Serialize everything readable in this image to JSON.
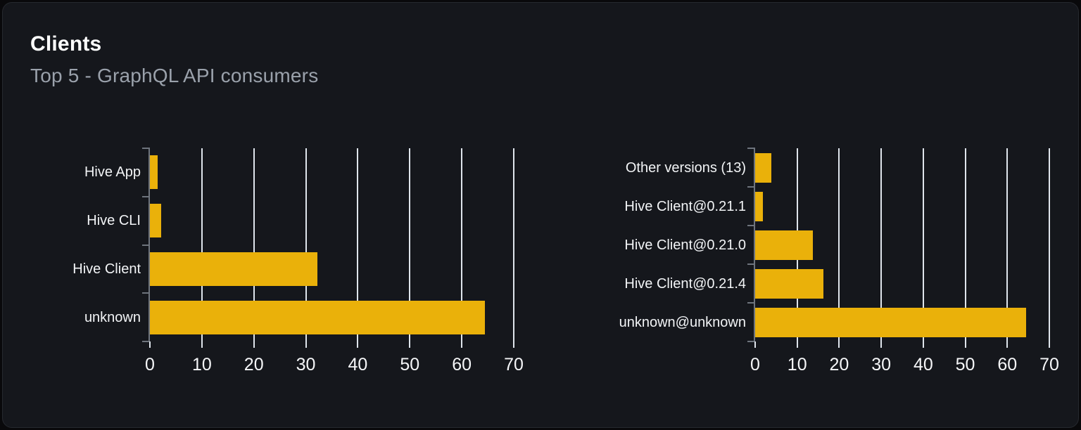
{
  "card": {
    "title": "Clients",
    "subtitle": "Top 5 - GraphQL API consumers"
  },
  "colors": {
    "page_bg": "#09090b",
    "card_bg": "#15171c",
    "card_border": "#26292f",
    "title": "#ffffff",
    "subtitle": "#9aa1ab",
    "bar": "#eab10a",
    "gridline": "#dfe5ec",
    "axis_spine": "#6e747d",
    "category_tick": "#6e747d",
    "x_tick": "#dfe5ec",
    "category_label": "#f2f4f6",
    "x_tick_label": "#f5f6f8"
  },
  "chart_data": [
    {
      "type": "bar",
      "orientation": "horizontal",
      "name": "top-clients",
      "categories": [
        "Hive App",
        "Hive CLI",
        "Hive Client",
        "unknown"
      ],
      "values": [
        1.5,
        2.2,
        32.2,
        64.5
      ],
      "xlim": [
        0,
        70
      ],
      "xticks": [
        0,
        10,
        20,
        30,
        40,
        50,
        60,
        70
      ],
      "grid": true,
      "legend": "none",
      "value_unit": "percent"
    },
    {
      "type": "bar",
      "orientation": "horizontal",
      "name": "top-client-versions",
      "categories": [
        "Other versions (13)",
        "Hive Client@0.21.1",
        "Hive Client@0.21.0",
        "Hive Client@0.21.4",
        "unknown@unknown"
      ],
      "values": [
        3.9,
        1.8,
        13.7,
        16.3,
        64.5
      ],
      "xlim": [
        0,
        70
      ],
      "xticks": [
        0,
        10,
        20,
        30,
        40,
        50,
        60,
        70
      ],
      "grid": true,
      "legend": "none",
      "value_unit": "percent"
    }
  ]
}
